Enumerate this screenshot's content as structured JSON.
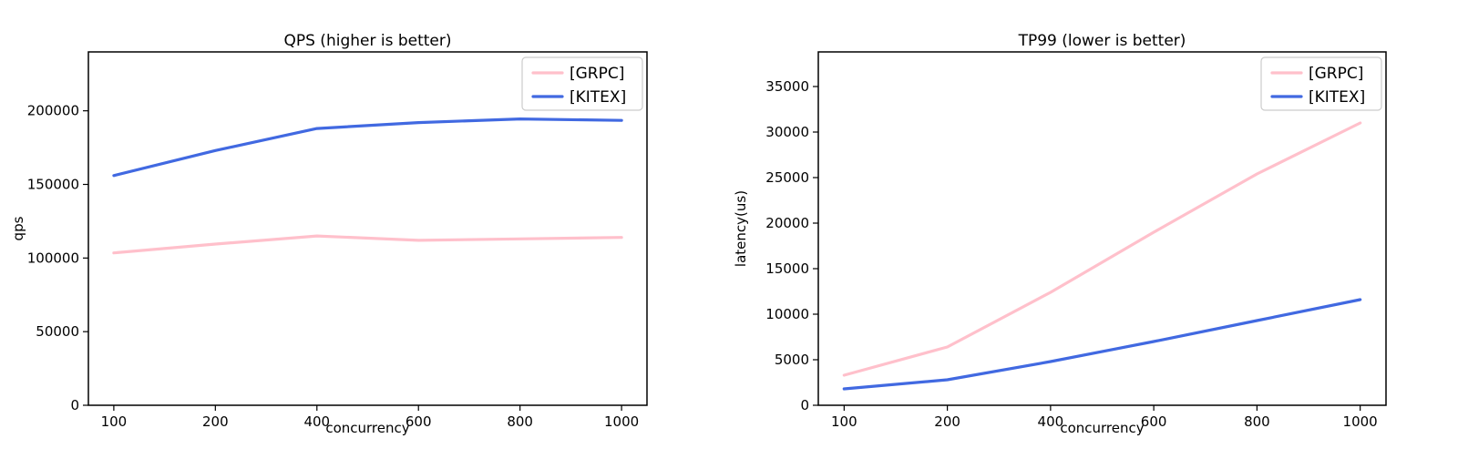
{
  "figure": {
    "background": "#ffffff"
  },
  "chart_data": [
    {
      "type": "line",
      "title": "QPS (higher is better)",
      "xlabel": "concurrency",
      "ylabel": "qps",
      "categories": [
        "100",
        "200",
        "400",
        "600",
        "800",
        "1000"
      ],
      "x_values": [
        100,
        200,
        400,
        600,
        800,
        1000
      ],
      "series": [
        {
          "name": "[GRPC]",
          "color": "#ffc0cb",
          "values": [
            103500,
            109500,
            115000,
            112000,
            113000,
            114000
          ]
        },
        {
          "name": "[KITEX]",
          "color": "#4169e1",
          "values": [
            156000,
            173000,
            188000,
            192000,
            194500,
            193500
          ]
        }
      ],
      "yticks": [
        "0",
        "50000",
        "100000",
        "150000",
        "200000"
      ],
      "ytick_values": [
        0,
        50000,
        100000,
        150000,
        200000
      ],
      "ylim": [
        0,
        240000
      ],
      "grid": false,
      "legend_position": "upper right"
    },
    {
      "type": "line",
      "title": "TP99 (lower is better)",
      "xlabel": "concurrency",
      "ylabel": "latency(us)",
      "categories": [
        "100",
        "200",
        "400",
        "600",
        "800",
        "1000"
      ],
      "x_values": [
        100,
        200,
        400,
        600,
        800,
        1000
      ],
      "series": [
        {
          "name": "[GRPC]",
          "color": "#ffc0cb",
          "values": [
            3300,
            6400,
            12400,
            19000,
            25400,
            31000
          ]
        },
        {
          "name": "[KITEX]",
          "color": "#4169e1",
          "values": [
            1800,
            2800,
            4800,
            7000,
            9300,
            11600
          ]
        }
      ],
      "yticks": [
        "0",
        "5000",
        "10000",
        "15000",
        "20000",
        "25000",
        "30000",
        "35000"
      ],
      "ytick_values": [
        0,
        5000,
        10000,
        15000,
        20000,
        25000,
        30000,
        35000
      ],
      "ylim": [
        0,
        38800
      ],
      "grid": false,
      "legend_position": "upper right"
    }
  ]
}
